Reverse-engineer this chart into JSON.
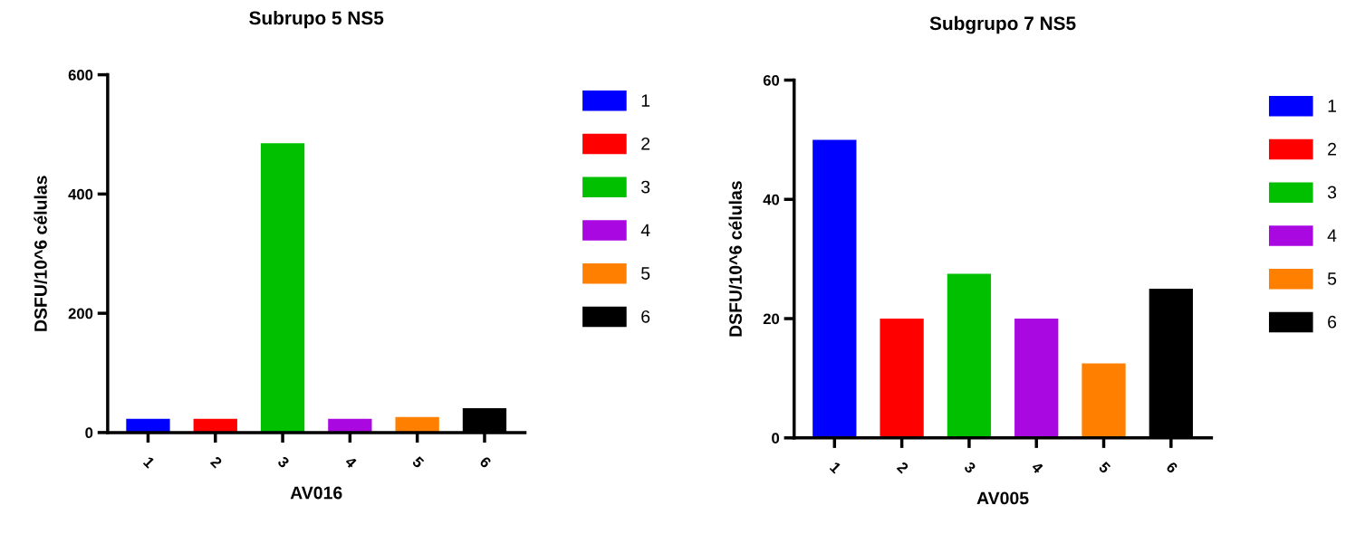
{
  "chart_data": [
    {
      "type": "bar",
      "title": "Subrupo 5 NS5",
      "xlabel": "AV016",
      "ylabel": "DSFU/10^6 células",
      "categories": [
        "1",
        "2",
        "3",
        "4",
        "5",
        "6"
      ],
      "series": [
        {
          "name": "1",
          "color": "#0000ff",
          "values": [
            23,
            null,
            null,
            null,
            null,
            null
          ]
        },
        {
          "name": "2",
          "color": "#ff0000",
          "values": [
            null,
            23,
            null,
            null,
            null,
            null
          ]
        },
        {
          "name": "3",
          "color": "#00c000",
          "values": [
            null,
            null,
            485,
            null,
            null,
            null
          ]
        },
        {
          "name": "4",
          "color": "#aa08e0",
          "values": [
            null,
            null,
            null,
            23,
            null,
            null
          ]
        },
        {
          "name": "5",
          "color": "#ff8000",
          "values": [
            null,
            null,
            null,
            null,
            26,
            null
          ]
        },
        {
          "name": "6",
          "color": "#000000",
          "values": [
            null,
            null,
            null,
            null,
            null,
            41
          ]
        }
      ],
      "ylim": [
        0,
        600
      ],
      "yticks": [
        0,
        200,
        400,
        600
      ],
      "legend": "right"
    },
    {
      "type": "bar",
      "title": "Subgrupo 7 NS5",
      "xlabel": "AV005",
      "ylabel": "DSFU/10^6 células",
      "categories": [
        "1",
        "2",
        "3",
        "4",
        "5",
        "6"
      ],
      "series": [
        {
          "name": "1",
          "color": "#0000ff",
          "values": [
            50,
            null,
            null,
            null,
            null,
            null
          ]
        },
        {
          "name": "2",
          "color": "#ff0000",
          "values": [
            null,
            20,
            null,
            null,
            null,
            null
          ]
        },
        {
          "name": "3",
          "color": "#00c000",
          "values": [
            null,
            null,
            27.5,
            null,
            null,
            null
          ]
        },
        {
          "name": "4",
          "color": "#aa08e0",
          "values": [
            null,
            null,
            null,
            20,
            null,
            null
          ]
        },
        {
          "name": "5",
          "color": "#ff8000",
          "values": [
            null,
            null,
            null,
            null,
            12.5,
            null
          ]
        },
        {
          "name": "6",
          "color": "#000000",
          "values": [
            null,
            null,
            null,
            null,
            null,
            25
          ]
        }
      ],
      "ylim": [
        0,
        60
      ],
      "yticks": [
        0,
        20,
        40,
        60
      ],
      "legend": "right"
    }
  ]
}
